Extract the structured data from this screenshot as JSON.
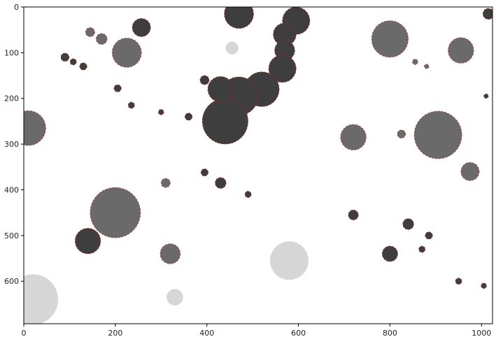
{
  "chart_data": {
    "type": "image",
    "xlim": [
      0,
      1024
    ],
    "ylim": [
      693,
      0
    ],
    "xticks": [
      0,
      200,
      400,
      600,
      800,
      1000
    ],
    "yticks": [
      0,
      100,
      200,
      300,
      400,
      500,
      600
    ],
    "xtick_labels": [
      "0",
      "200",
      "400",
      "600",
      "800",
      "1000"
    ],
    "ytick_labels": [
      "0",
      "100",
      "200",
      "300",
      "400",
      "500",
      "600"
    ],
    "title": "",
    "xlabel": "",
    "ylabel": "",
    "grid": false,
    "colors": {
      "dark_blob": "#3e3e3e",
      "mid_blob": "#6a6a6a",
      "light_blob": "#d6d6d6",
      "contour": "#d0191e"
    },
    "blobs": [
      {
        "x": 470,
        "y": 15,
        "r": 32,
        "shade": "dark"
      },
      {
        "x": 595,
        "y": 30,
        "r": 30,
        "shade": "dark"
      },
      {
        "x": 570,
        "y": 60,
        "r": 25,
        "shade": "dark"
      },
      {
        "x": 570,
        "y": 95,
        "r": 22,
        "shade": "dark"
      },
      {
        "x": 565,
        "y": 135,
        "r": 30,
        "shade": "dark"
      },
      {
        "x": 520,
        "y": 180,
        "r": 38,
        "shade": "dark"
      },
      {
        "x": 470,
        "y": 195,
        "r": 42,
        "shade": "dark"
      },
      {
        "x": 440,
        "y": 250,
        "r": 50,
        "shade": "dark"
      },
      {
        "x": 430,
        "y": 180,
        "r": 28,
        "shade": "dark"
      },
      {
        "x": 395,
        "y": 160,
        "r": 10,
        "shade": "dark"
      },
      {
        "x": 1015,
        "y": 15,
        "r": 12,
        "shade": "dark"
      },
      {
        "x": 90,
        "y": 110,
        "r": 9,
        "shade": "dark"
      },
      {
        "x": 108,
        "y": 120,
        "r": 7,
        "shade": "dark"
      },
      {
        "x": 130,
        "y": 130,
        "r": 8,
        "shade": "dark"
      },
      {
        "x": 205,
        "y": 178,
        "r": 8,
        "shade": "dark"
      },
      {
        "x": 235,
        "y": 215,
        "r": 7,
        "shade": "dark"
      },
      {
        "x": 300,
        "y": 230,
        "r": 6,
        "shade": "dark"
      },
      {
        "x": 360,
        "y": 240,
        "r": 8,
        "shade": "dark"
      },
      {
        "x": 395,
        "y": 362,
        "r": 8,
        "shade": "dark"
      },
      {
        "x": 430,
        "y": 385,
        "r": 12,
        "shade": "dark"
      },
      {
        "x": 490,
        "y": 410,
        "r": 7,
        "shade": "dark"
      },
      {
        "x": 720,
        "y": 455,
        "r": 11,
        "shade": "dark"
      },
      {
        "x": 800,
        "y": 540,
        "r": 17,
        "shade": "dark"
      },
      {
        "x": 840,
        "y": 475,
        "r": 12,
        "shade": "dark"
      },
      {
        "x": 140,
        "y": 512,
        "r": 28,
        "shade": "dark"
      },
      {
        "x": 950,
        "y": 600,
        "r": 7,
        "shade": "dark"
      },
      {
        "x": 1005,
        "y": 610,
        "r": 6,
        "shade": "dark"
      },
      {
        "x": 257,
        "y": 45,
        "r": 20,
        "shade": "dark"
      },
      {
        "x": 800,
        "y": 70,
        "r": 40,
        "shade": "mid"
      },
      {
        "x": 955,
        "y": 95,
        "r": 28,
        "shade": "mid"
      },
      {
        "x": 225,
        "y": 100,
        "r": 32,
        "shade": "mid"
      },
      {
        "x": 720,
        "y": 285,
        "r": 28,
        "shade": "mid"
      },
      {
        "x": 905,
        "y": 280,
        "r": 52,
        "shade": "mid"
      },
      {
        "x": 975,
        "y": 360,
        "r": 20,
        "shade": "mid"
      },
      {
        "x": 200,
        "y": 450,
        "r": 55,
        "shade": "mid"
      },
      {
        "x": 10,
        "y": 265,
        "r": 38,
        "shade": "mid"
      },
      {
        "x": 320,
        "y": 540,
        "r": 22,
        "shade": "mid"
      },
      {
        "x": 310,
        "y": 385,
        "r": 10,
        "shade": "mid"
      },
      {
        "x": 170,
        "y": 70,
        "r": 12,
        "shade": "mid"
      },
      {
        "x": 145,
        "y": 55,
        "r": 10,
        "shade": "mid"
      },
      {
        "x": 825,
        "y": 278,
        "r": 9,
        "shade": "mid"
      },
      {
        "x": 580,
        "y": 555,
        "r": 42,
        "shade": "light"
      },
      {
        "x": 20,
        "y": 640,
        "r": 55,
        "shade": "light"
      },
      {
        "x": 330,
        "y": 635,
        "r": 18,
        "shade": "light"
      },
      {
        "x": 455,
        "y": 90,
        "r": 14,
        "shade": "light"
      },
      {
        "x": 855,
        "y": 120,
        "r": 6,
        "shade": "mid"
      },
      {
        "x": 880,
        "y": 130,
        "r": 5,
        "shade": "mid"
      },
      {
        "x": 1010,
        "y": 195,
        "r": 5,
        "shade": "dark"
      },
      {
        "x": 870,
        "y": 530,
        "r": 7,
        "shade": "dark"
      },
      {
        "x": 885,
        "y": 500,
        "r": 8,
        "shade": "dark"
      }
    ]
  }
}
